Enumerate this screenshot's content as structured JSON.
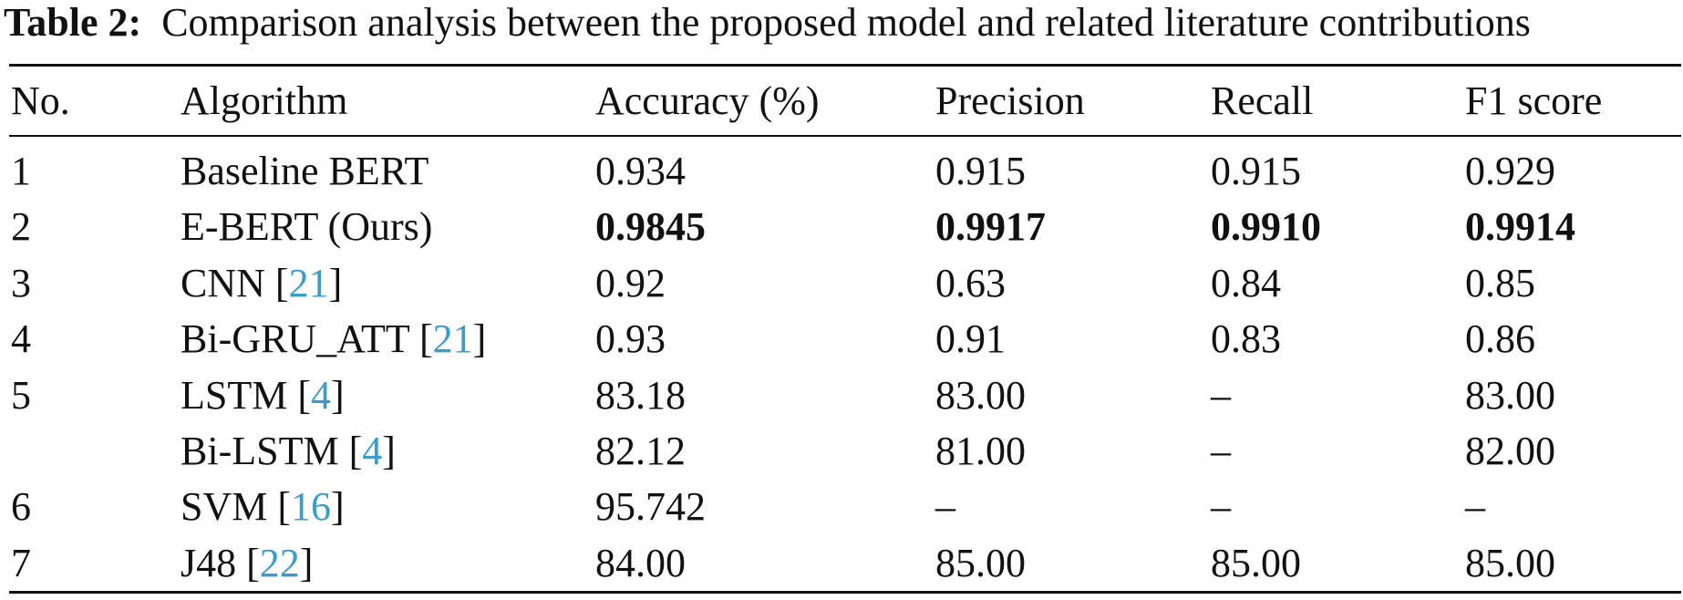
{
  "caption": {
    "label": "Table 2:",
    "text": "Comparison analysis between the proposed model and related literature contributions"
  },
  "table": {
    "header": [
      "No.",
      "Algorithm",
      "Accuracy (%)",
      "Precision",
      "Recall",
      "F1 score"
    ],
    "rows": [
      {
        "no": "1",
        "algorithm": [
          {
            "text": "Baseline BERT"
          }
        ],
        "values": [
          "0.934",
          "0.915",
          "0.915",
          "0.929"
        ],
        "bold": false
      },
      {
        "no": "2",
        "algorithm": [
          {
            "text": "E-BERT (Ours)"
          }
        ],
        "values": [
          "0.9845",
          "0.9917",
          "0.9910",
          "0.9914"
        ],
        "bold": true
      },
      {
        "no": "3",
        "algorithm": [
          {
            "text": "CNN ["
          },
          {
            "text": "21",
            "ref": true
          },
          {
            "text": "]"
          }
        ],
        "values": [
          "0.92",
          "0.63",
          "0.84",
          "0.85"
        ],
        "bold": false
      },
      {
        "no": "4",
        "algorithm": [
          {
            "text": "Bi-GRU_ATT ["
          },
          {
            "text": "21",
            "ref": true
          },
          {
            "text": "]"
          }
        ],
        "values": [
          "0.93",
          "0.91",
          "0.83",
          "0.86"
        ],
        "bold": false
      },
      {
        "no": "5",
        "algorithm": [
          {
            "text": "LSTM ["
          },
          {
            "text": "4",
            "ref": true
          },
          {
            "text": "]"
          }
        ],
        "values": [
          "83.18",
          "83.00",
          "–",
          "83.00"
        ],
        "bold": false
      },
      {
        "no": null,
        "algorithm": [
          {
            "text": "Bi-LSTM ["
          },
          {
            "text": "4",
            "ref": true
          },
          {
            "text": "]"
          }
        ],
        "values": [
          "82.12",
          "81.00",
          "–",
          "82.00"
        ],
        "bold": false
      },
      {
        "no": "6",
        "algorithm": [
          {
            "text": "SVM ["
          },
          {
            "text": "16",
            "ref": true
          },
          {
            "text": "]"
          }
        ],
        "values": [
          "95.742",
          "–",
          "–",
          "–"
        ],
        "bold": false
      },
      {
        "no": "7",
        "algorithm": [
          {
            "text": "J48 ["
          },
          {
            "text": "22",
            "ref": true
          },
          {
            "text": "]"
          }
        ],
        "values": [
          "84.00",
          "85.00",
          "85.00",
          "85.00"
        ],
        "bold": false
      }
    ]
  }
}
